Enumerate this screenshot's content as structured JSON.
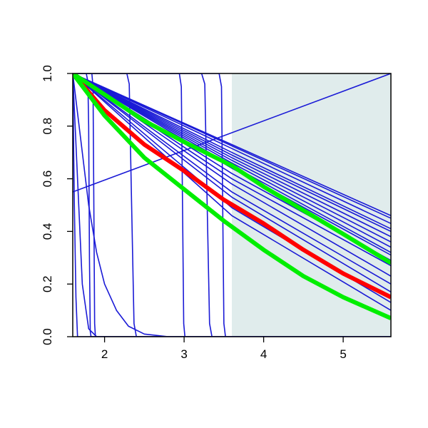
{
  "chart_data": {
    "type": "line",
    "title": "",
    "xlabel": "",
    "ylabel": "",
    "xlim": [
      1.6,
      5.6
    ],
    "ylim": [
      0.0,
      1.0
    ],
    "x_ticks": [
      2,
      3,
      4,
      5
    ],
    "x_tick_labels": [
      "2",
      "3",
      "4",
      "5"
    ],
    "y_ticks": [
      0.0,
      0.2,
      0.4,
      0.6,
      0.8,
      1.0
    ],
    "y_tick_labels": [
      "0.0",
      "0.2",
      "0.4",
      "0.6",
      "0.8",
      "1.0"
    ],
    "grid": false,
    "legend": "none",
    "shaded_region": {
      "x": [
        3.6,
        5.6
      ],
      "color": "#e0ecec"
    },
    "colors": {
      "blue": "#1a1ad6",
      "red": "#ff0000",
      "green": "#00ee00",
      "axis": "#000000"
    },
    "series": [
      {
        "color": "blue",
        "width": "thin",
        "points": [
          [
            1.6,
            1.0
          ],
          [
            1.62,
            0.5
          ],
          [
            1.64,
            0.15
          ],
          [
            1.66,
            0.0
          ],
          [
            5.6,
            0.0
          ]
        ]
      },
      {
        "color": "blue",
        "width": "thin",
        "points": [
          [
            1.6,
            1.0
          ],
          [
            1.66,
            0.6
          ],
          [
            1.72,
            0.2
          ],
          [
            1.8,
            0.03
          ],
          [
            1.9,
            0.0
          ],
          [
            5.6,
            0.0
          ]
        ]
      },
      {
        "color": "blue",
        "width": "thin",
        "points": [
          [
            1.6,
            1.0
          ],
          [
            1.7,
            0.75
          ],
          [
            1.8,
            0.5
          ],
          [
            1.9,
            0.32
          ],
          [
            2.0,
            0.2
          ],
          [
            2.15,
            0.1
          ],
          [
            2.3,
            0.04
          ],
          [
            2.5,
            0.01
          ],
          [
            2.8,
            0.0
          ],
          [
            5.6,
            0.0
          ]
        ]
      },
      {
        "color": "blue",
        "width": "thin",
        "points": [
          [
            1.6,
            1.0
          ],
          [
            1.77,
            1.0
          ],
          [
            1.79,
            0.97
          ],
          [
            1.8,
            0.8
          ],
          [
            1.81,
            0.3
          ],
          [
            1.82,
            0.02
          ],
          [
            1.83,
            0.0
          ],
          [
            5.6,
            0.0
          ]
        ]
      },
      {
        "color": "blue",
        "width": "thin",
        "points": [
          [
            1.6,
            1.0
          ],
          [
            1.84,
            1.0
          ],
          [
            1.855,
            0.95
          ],
          [
            1.865,
            0.5
          ],
          [
            1.875,
            0.05
          ],
          [
            1.885,
            0.0
          ],
          [
            5.6,
            0.0
          ]
        ]
      },
      {
        "color": "blue",
        "width": "thin",
        "points": [
          [
            1.6,
            1.0
          ],
          [
            2.28,
            1.0
          ],
          [
            2.31,
            0.96
          ],
          [
            2.34,
            0.5
          ],
          [
            2.37,
            0.05
          ],
          [
            2.4,
            0.0
          ],
          [
            5.6,
            0.0
          ]
        ]
      },
      {
        "color": "blue",
        "width": "thin",
        "points": [
          [
            1.6,
            1.0
          ],
          [
            2.94,
            1.0
          ],
          [
            2.965,
            0.95
          ],
          [
            2.98,
            0.5
          ],
          [
            2.995,
            0.05
          ],
          [
            3.01,
            0.0
          ],
          [
            5.6,
            0.0
          ]
        ]
      },
      {
        "color": "blue",
        "width": "thin",
        "points": [
          [
            1.6,
            1.0
          ],
          [
            3.22,
            1.0
          ],
          [
            3.26,
            0.96
          ],
          [
            3.29,
            0.5
          ],
          [
            3.32,
            0.05
          ],
          [
            3.35,
            0.0
          ],
          [
            5.6,
            0.0
          ]
        ]
      },
      {
        "color": "blue",
        "width": "thin",
        "points": [
          [
            1.6,
            1.0
          ],
          [
            3.44,
            1.0
          ],
          [
            3.47,
            0.95
          ],
          [
            3.485,
            0.5
          ],
          [
            3.5,
            0.05
          ],
          [
            3.52,
            0.0
          ],
          [
            5.6,
            0.0
          ]
        ]
      },
      {
        "color": "blue",
        "width": "thin",
        "points": [
          [
            1.6,
            0.55
          ],
          [
            5.6,
            1.0
          ]
        ]
      },
      {
        "color": "blue",
        "width": "thin",
        "points": [
          [
            1.6,
            1.0
          ],
          [
            3.6,
            0.73
          ],
          [
            5.6,
            0.46
          ]
        ]
      },
      {
        "color": "blue",
        "width": "thin",
        "points": [
          [
            1.6,
            1.0
          ],
          [
            3.6,
            0.725
          ],
          [
            5.6,
            0.45
          ]
        ]
      },
      {
        "color": "blue",
        "width": "thin",
        "points": [
          [
            1.6,
            1.0
          ],
          [
            3.6,
            0.715
          ],
          [
            5.6,
            0.43
          ]
        ]
      },
      {
        "color": "blue",
        "width": "thin",
        "points": [
          [
            1.6,
            1.0
          ],
          [
            3.6,
            0.7
          ],
          [
            5.6,
            0.41
          ]
        ]
      },
      {
        "color": "blue",
        "width": "thin",
        "points": [
          [
            1.6,
            1.0
          ],
          [
            3.6,
            0.69
          ],
          [
            5.6,
            0.4
          ]
        ]
      },
      {
        "color": "blue",
        "width": "thin",
        "points": [
          [
            1.6,
            1.0
          ],
          [
            3.6,
            0.68
          ],
          [
            5.6,
            0.38
          ]
        ]
      },
      {
        "color": "blue",
        "width": "thin",
        "points": [
          [
            1.6,
            1.0
          ],
          [
            3.6,
            0.67
          ],
          [
            5.6,
            0.36
          ]
        ]
      },
      {
        "color": "blue",
        "width": "thin",
        "points": [
          [
            1.6,
            1.0
          ],
          [
            3.6,
            0.66
          ],
          [
            5.6,
            0.34
          ]
        ]
      },
      {
        "color": "blue",
        "width": "thin",
        "points": [
          [
            1.6,
            1.0
          ],
          [
            3.6,
            0.65
          ],
          [
            5.6,
            0.32
          ]
        ]
      },
      {
        "color": "blue",
        "width": "thin",
        "points": [
          [
            1.6,
            1.0
          ],
          [
            3.6,
            0.64
          ],
          [
            5.6,
            0.31
          ]
        ]
      },
      {
        "color": "blue",
        "width": "thin",
        "points": [
          [
            1.6,
            1.0
          ],
          [
            3.6,
            0.62
          ],
          [
            5.6,
            0.29
          ]
        ]
      },
      {
        "color": "blue",
        "width": "thin",
        "points": [
          [
            1.6,
            1.0
          ],
          [
            3.6,
            0.6
          ],
          [
            5.6,
            0.27
          ]
        ]
      },
      {
        "color": "blue",
        "width": "thin",
        "points": [
          [
            1.6,
            1.0
          ],
          [
            3.6,
            0.58
          ],
          [
            5.6,
            0.23
          ]
        ]
      },
      {
        "color": "blue",
        "width": "thin",
        "points": [
          [
            1.6,
            1.0
          ],
          [
            3.6,
            0.55
          ],
          [
            5.6,
            0.2
          ]
        ]
      },
      {
        "color": "blue",
        "width": "thin",
        "points": [
          [
            1.6,
            1.0
          ],
          [
            3.6,
            0.53
          ],
          [
            5.6,
            0.17
          ]
        ]
      },
      {
        "color": "blue",
        "width": "thin",
        "points": [
          [
            1.6,
            1.0
          ],
          [
            3.6,
            0.49
          ],
          [
            5.6,
            0.13
          ]
        ]
      },
      {
        "color": "blue",
        "width": "thin",
        "points": [
          [
            1.6,
            1.0
          ],
          [
            3.6,
            0.46
          ],
          [
            5.6,
            0.1
          ]
        ]
      },
      {
        "color": "red",
        "width": "thick",
        "points": [
          [
            1.6,
            1.0
          ],
          [
            2.0,
            0.86
          ],
          [
            2.5,
            0.73
          ],
          [
            3.0,
            0.63
          ],
          [
            3.5,
            0.52
          ],
          [
            4.0,
            0.43
          ],
          [
            4.5,
            0.33
          ],
          [
            5.0,
            0.24
          ],
          [
            5.6,
            0.15
          ]
        ]
      },
      {
        "color": "green",
        "width": "thick",
        "points": [
          [
            1.6,
            1.0
          ],
          [
            2.0,
            0.84
          ],
          [
            2.5,
            0.68
          ],
          [
            3.0,
            0.56
          ],
          [
            3.5,
            0.44
          ],
          [
            4.0,
            0.33
          ],
          [
            4.5,
            0.23
          ],
          [
            5.0,
            0.15
          ],
          [
            5.6,
            0.07
          ]
        ]
      },
      {
        "color": "green",
        "width": "thick",
        "points": [
          [
            1.6,
            1.0
          ],
          [
            2.5,
            0.82
          ],
          [
            3.0,
            0.74
          ],
          [
            3.6,
            0.65
          ],
          [
            4.0,
            0.57
          ],
          [
            4.5,
            0.48
          ],
          [
            5.0,
            0.39
          ],
          [
            5.6,
            0.28
          ]
        ]
      }
    ]
  }
}
